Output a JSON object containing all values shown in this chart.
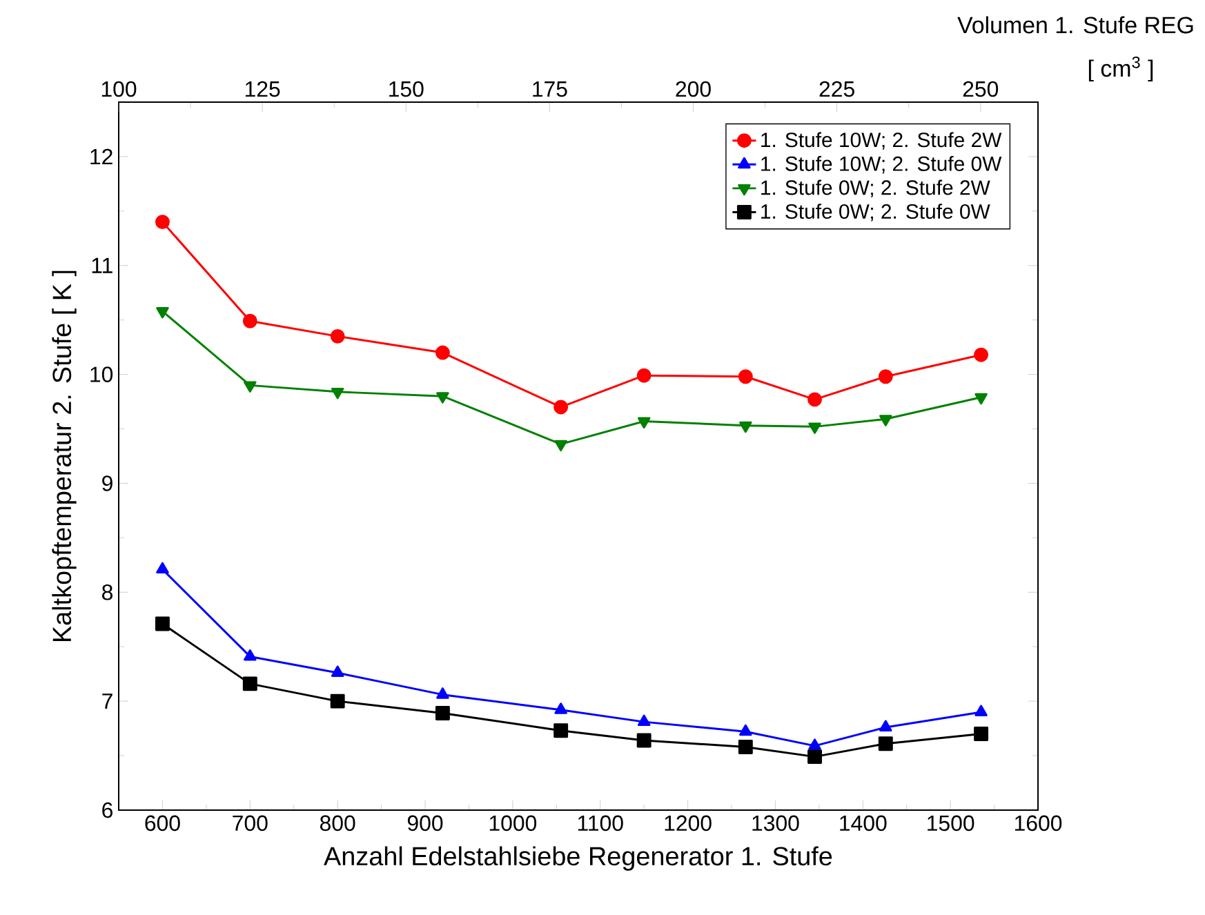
{
  "chart_data": {
    "type": "line",
    "xlabel": "Anzahl Edelstahlsiebe Regenerator 1. Stufe",
    "ylabel": "Kaltkopftemperatur   2. Stufe  [ K ]",
    "x2label": "Volumen 1. Stufe REG",
    "annotations": [
      "[ cm$^{3}$ ]"
    ],
    "x": [
      600,
      700,
      800,
      920,
      1055,
      1150,
      1266,
      1345,
      1426,
      1535
    ],
    "xlim": [
      550,
      1600
    ],
    "xticks": [
      600,
      700,
      800,
      900,
      1000,
      1100,
      1200,
      1300,
      1400,
      1500,
      1600
    ],
    "x2lim": [
      100,
      260
    ],
    "x2ticks": [
      100,
      125,
      150,
      175,
      200,
      225,
      250
    ],
    "ylim": [
      6,
      12.5
    ],
    "yticks": [
      6,
      7,
      8,
      9,
      10,
      11,
      12
    ],
    "legend": "top right",
    "grid": false,
    "line_style": "solid",
    "series": [
      {
        "name": "1. Stufe 10W; 2. Stufe 2W",
        "color": "#ff0000",
        "marker": "circle",
        "values": [
          11.4,
          10.49,
          10.35,
          10.2,
          9.7,
          9.99,
          9.98,
          9.77,
          9.98,
          10.18
        ]
      },
      {
        "name": "1. Stufe 10W; 2. Stufe 0W",
        "color": "#0000ff",
        "marker": "triangle",
        "values": [
          8.21,
          7.41,
          7.26,
          7.06,
          6.92,
          6.81,
          6.72,
          6.59,
          6.76,
          6.9
        ]
      },
      {
        "name": "1. Stufe 0W; 2. Stufe 2W",
        "color": "#008000",
        "marker": "triangle down",
        "values": [
          10.58,
          9.9,
          9.84,
          9.8,
          9.36,
          9.57,
          9.53,
          9.52,
          9.59,
          9.79
        ]
      },
      {
        "name": "1. Stufe 0W; 2. Stufe 0W",
        "color": "#000000",
        "marker": "square",
        "values": [
          7.71,
          7.16,
          7.0,
          6.89,
          6.73,
          6.64,
          6.58,
          6.49,
          6.61,
          6.7
        ]
      }
    ]
  }
}
